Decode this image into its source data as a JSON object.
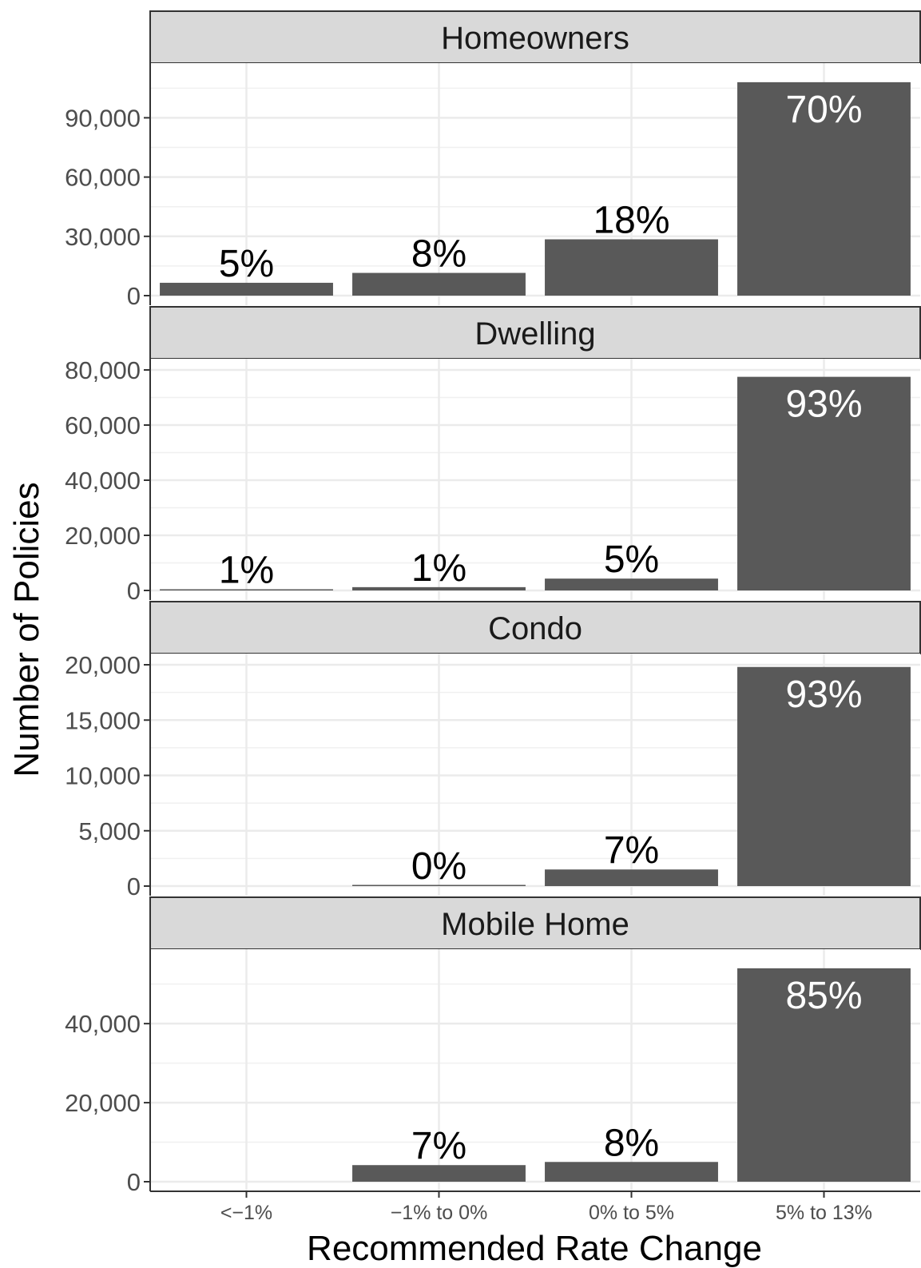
{
  "chart_data": {
    "type": "bar",
    "xlabel": "Recommended Rate Change",
    "ylabel": "Number of Policies",
    "categories": [
      "<−1%",
      "−1% to 0%",
      "0% to 5%",
      "5% to 13%"
    ],
    "grid": true,
    "bar_color": "#595959",
    "strip_color": "#d9d9d9",
    "panels": [
      {
        "name": "Homeowners",
        "values": [
          6500,
          11500,
          28500,
          108000
        ],
        "labels": [
          "5%",
          "8%",
          "18%",
          "70%"
        ],
        "ylim": [
          0,
          112000
        ],
        "yticks": [
          0,
          30000,
          60000,
          90000
        ],
        "ytick_labels": [
          "0",
          "30,000",
          "60,000",
          "90,000"
        ]
      },
      {
        "name": "Dwelling",
        "values": [
          400,
          1200,
          4300,
          77500
        ],
        "labels": [
          "1%",
          "1%",
          "5%",
          "93%"
        ],
        "ylim": [
          0,
          80000
        ],
        "yticks": [
          0,
          20000,
          40000,
          60000,
          80000
        ],
        "ytick_labels": [
          "0",
          "20,000",
          "40,000",
          "60,000",
          "80,000"
        ]
      },
      {
        "name": "Condo",
        "values": [
          0,
          60,
          1500,
          19800
        ],
        "labels": [
          "",
          "0%",
          "7%",
          "93%"
        ],
        "ylim": [
          0,
          20000
        ],
        "yticks": [
          0,
          5000,
          10000,
          15000,
          20000
        ],
        "ytick_labels": [
          "0",
          "5,000",
          "10,000",
          "15,000",
          "20,000"
        ]
      },
      {
        "name": "Mobile Home",
        "values": [
          0,
          4200,
          5000,
          54000
        ],
        "labels": [
          "",
          "7%",
          "8%",
          "85%"
        ],
        "ylim": [
          0,
          56000
        ],
        "yticks": [
          0,
          20000,
          40000
        ],
        "ytick_labels": [
          "0",
          "20,000",
          "40,000"
        ]
      }
    ]
  }
}
